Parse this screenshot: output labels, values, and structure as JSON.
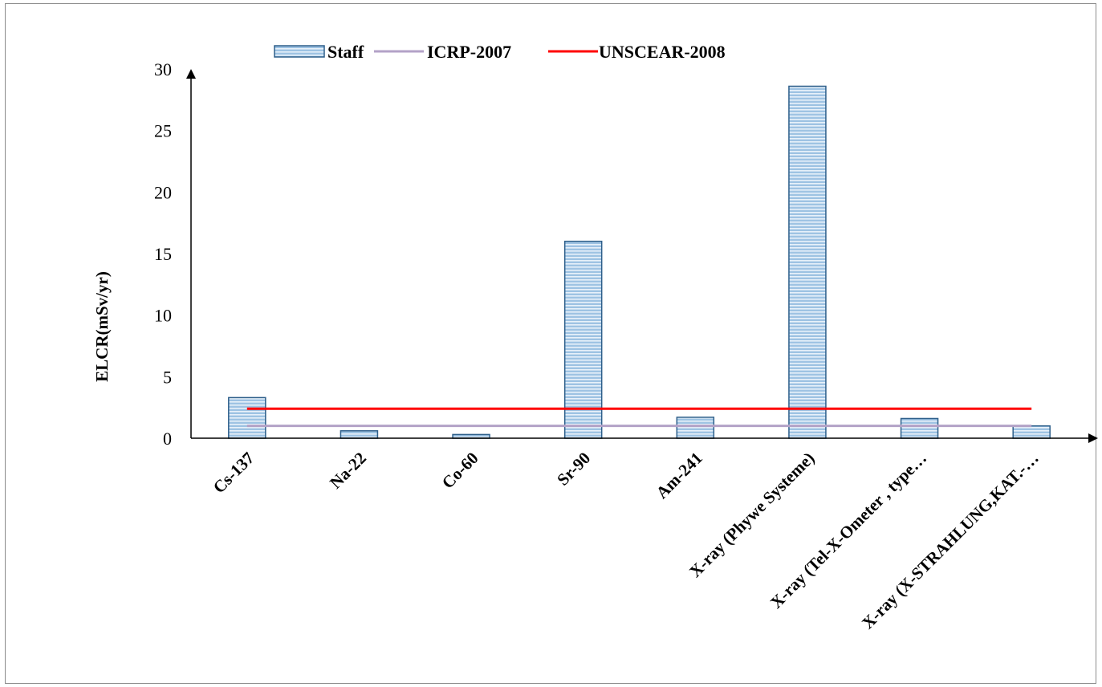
{
  "chart_data": {
    "type": "bar",
    "title": "",
    "xlabel": "",
    "ylabel": "ELCR(mSv/yr)",
    "ylim": [
      0,
      30
    ],
    "yticks": [
      0,
      5,
      10,
      15,
      20,
      25,
      30
    ],
    "grid": false,
    "legend_position": "top",
    "categories": [
      "Cs-137",
      "Na-22",
      "Co-60",
      "Sr-90",
      "Am-241",
      "X-ray (Phywe Systeme)",
      "X-ray (Tel-X-Ometer , type…",
      "X-ray (X-STRAHLUNG,KAT.-…"
    ],
    "series": [
      {
        "name": "Staff",
        "kind": "bar",
        "color": "#8fb8dc",
        "edge_color": "#2e5f8a",
        "values": [
          3.3,
          0.6,
          0.3,
          16.0,
          1.7,
          28.6,
          1.6,
          1.0
        ]
      },
      {
        "name": "ICRP-2007",
        "kind": "line",
        "color": "#b3a2c7",
        "values": [
          1,
          1,
          1,
          1,
          1,
          1,
          1,
          1
        ]
      },
      {
        "name": "UNSCEAR-2008",
        "kind": "line",
        "color": "#ff0000",
        "values": [
          2.4,
          2.4,
          2.4,
          2.4,
          2.4,
          2.4,
          2.4,
          2.4
        ]
      }
    ]
  }
}
